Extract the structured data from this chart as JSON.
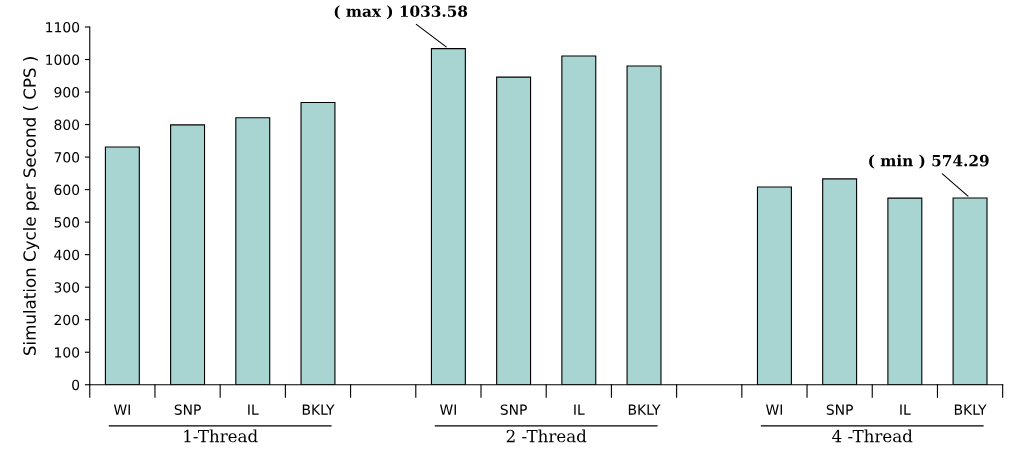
{
  "chart_data": {
    "type": "bar",
    "ylabel": "Simulation Cycle per Second ( CPS )",
    "categories": [
      "WI",
      "SNP",
      "IL",
      "BKLY",
      null,
      "WI",
      "SNP",
      "IL",
      "BKLY",
      null,
      "WI",
      "SNP",
      "IL",
      "BKLY"
    ],
    "values": [
      731,
      799,
      821,
      868,
      null,
      1033.58,
      946,
      1011,
      980,
      null,
      608,
      633,
      574,
      574.29
    ],
    "value_labels": [
      null,
      null,
      null,
      null,
      null,
      "( max ) 1033.58",
      null,
      null,
      null,
      null,
      null,
      null,
      null,
      "( min ) 574.29"
    ],
    "color": "#a8d5d1",
    "ylim": [
      0,
      1100
    ],
    "yticks": [
      0,
      100,
      200,
      300,
      400,
      500,
      600,
      700,
      800,
      900,
      1000,
      1100
    ],
    "annotations": [
      "1-Thread",
      "2 -Thread",
      "4 -Thread"
    ],
    "grid": false,
    "legend": false
  }
}
